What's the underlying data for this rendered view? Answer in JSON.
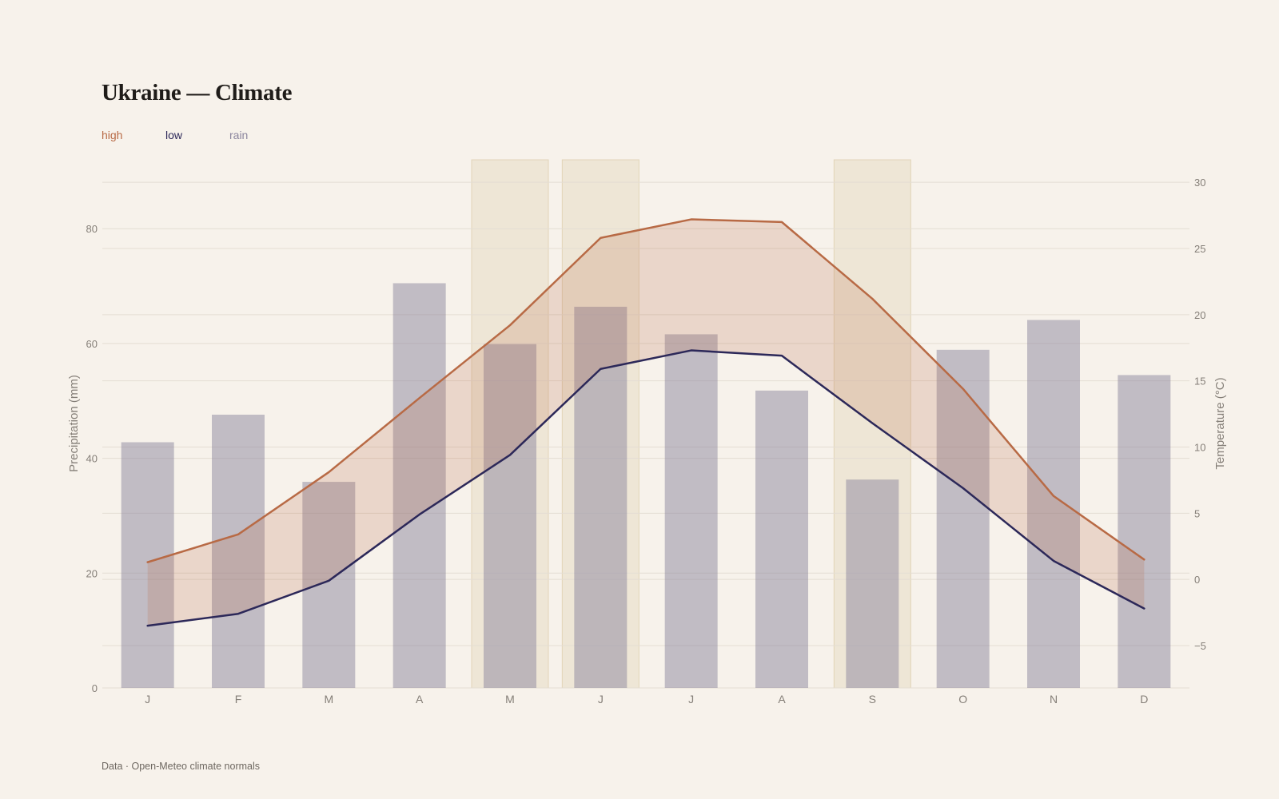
{
  "title": "Ukraine — Climate",
  "legend": {
    "high": "high",
    "low": "low",
    "rain": "rain"
  },
  "source": "Data · Open-Meteo climate normals",
  "colors": {
    "high": "#b86a45",
    "low": "#2c2859",
    "rain": "#8c869e",
    "band": "#e8dcc4"
  },
  "chart_data": {
    "type": "bar",
    "categories": [
      "J",
      "F",
      "M",
      "A",
      "M",
      "J",
      "J",
      "A",
      "S",
      "O",
      "N",
      "D"
    ],
    "series": [
      {
        "name": "rain",
        "axis": "left",
        "type": "bar",
        "values": [
          42.8,
          47.6,
          35.9,
          70.5,
          59.9,
          66.4,
          61.6,
          51.8,
          36.3,
          58.9,
          64.1,
          54.5
        ]
      },
      {
        "name": "high",
        "axis": "right",
        "type": "line",
        "values": [
          1.3,
          3.4,
          8.1,
          13.7,
          19.2,
          25.8,
          27.2,
          27.0,
          21.2,
          14.4,
          6.3,
          1.5
        ]
      },
      {
        "name": "low",
        "axis": "right",
        "type": "line",
        "values": [
          -3.5,
          -2.6,
          -0.1,
          4.9,
          9.4,
          15.9,
          17.3,
          16.9,
          11.8,
          6.9,
          1.4,
          -2.2
        ]
      }
    ],
    "highlighted_months": [
      4,
      5,
      8
    ],
    "ylabel_left": "Precipitation (mm)",
    "ylabel_right": "Temperature (°C)",
    "ylim_left": [
      0,
      92
    ],
    "ylim_right": [
      -8.2,
      31.7
    ],
    "yticks_left": [
      0,
      20,
      40,
      60,
      80
    ],
    "yticks_right": [
      -5,
      0,
      5,
      10,
      15,
      20,
      25,
      30
    ],
    "grid": true,
    "legend_position": "top-left"
  }
}
